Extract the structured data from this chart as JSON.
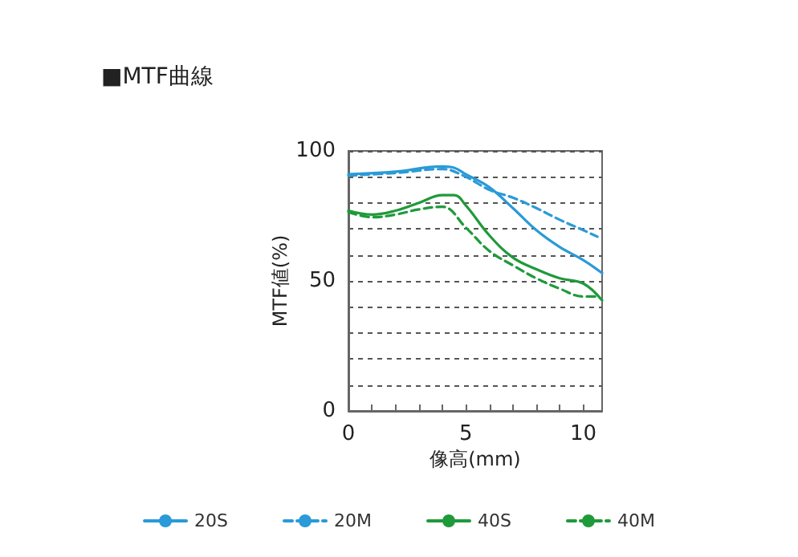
{
  "chart_data": {
    "type": "line",
    "title": "■MTF曲線",
    "xlabel": "像高(mm)",
    "ylabel": "MTF値(%)",
    "xlim": [
      0,
      10.8
    ],
    "ylim": [
      0,
      100
    ],
    "xticks": [
      0,
      {
        "value": 1,
        "label": null
      },
      {
        "value": 2,
        "label": null
      },
      {
        "value": 3,
        "label": null
      },
      {
        "value": 4,
        "label": null
      },
      5,
      {
        "value": 6,
        "label": null
      },
      {
        "value": 7,
        "label": null
      },
      {
        "value": 8,
        "label": null
      },
      {
        "value": 9,
        "label": null
      },
      10
    ],
    "yticks": [
      0,
      {
        "value": 10,
        "label": null
      },
      {
        "value": 20,
        "label": null
      },
      {
        "value": 30,
        "label": null
      },
      {
        "value": 40,
        "label": null
      },
      50,
      {
        "value": 60,
        "label": null
      },
      {
        "value": 70,
        "label": null
      },
      {
        "value": 80,
        "label": null
      },
      {
        "value": 90,
        "label": null
      },
      100
    ],
    "grid": "y",
    "legend": "bottom",
    "marker": "none",
    "series": [
      {
        "name": "20S",
        "color": "#2a9ad8",
        "line_style": "solid",
        "x": [
          0,
          2,
          4,
          4.5,
          5,
          6,
          7,
          8,
          9,
          10,
          10.8
        ],
        "values": [
          91,
          92,
          94,
          93.5,
          91,
          86,
          78,
          69.5,
          63,
          58,
          53
        ]
      },
      {
        "name": "20M",
        "color": "#2a9ad8",
        "line_style": "dashed",
        "x": [
          0,
          2,
          4,
          5,
          6,
          7,
          8,
          9,
          10,
          10.6
        ],
        "values": [
          90.5,
          91.5,
          93,
          90,
          85,
          82,
          78,
          73.5,
          69.5,
          67
        ]
      },
      {
        "name": "40S",
        "color": "#1f9a3a",
        "line_style": "solid",
        "x": [
          0,
          1,
          2,
          3,
          4,
          4.5,
          5,
          6,
          7,
          8,
          9,
          10,
          10.8
        ],
        "values": [
          77,
          75.5,
          77,
          80,
          83,
          83,
          79,
          67.5,
          59,
          54.5,
          51,
          49,
          42.5
        ]
      },
      {
        "name": "40M",
        "color": "#1f9a3a",
        "line_style": "dashed",
        "x": [
          0,
          1,
          2,
          3,
          4,
          5,
          6,
          7,
          8,
          9,
          10,
          10.5
        ],
        "values": [
          76.5,
          74.5,
          75.5,
          77.5,
          78.5,
          70.5,
          61.5,
          56,
          51,
          47,
          44,
          44
        ]
      }
    ]
  }
}
